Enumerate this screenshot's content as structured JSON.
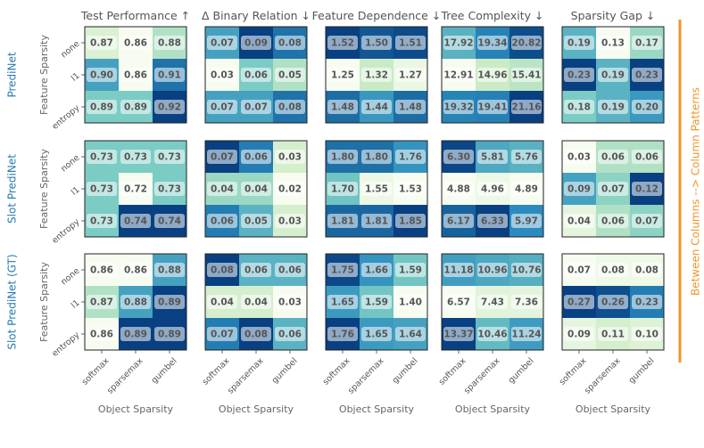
{
  "chart_data": {
    "type": "heatmap",
    "column_titles": [
      "Test Performance ↑",
      "Δ Binary Relation ↓",
      "Feature Dependence ↓",
      "Tree Complexity ↓",
      "Sparsity Gap ↓"
    ],
    "row_titles": [
      "PrediNet",
      "Slot PrediNet",
      "Slot PrediNet (GT)"
    ],
    "xlabel": "Object Sparsity",
    "ylabel": "Feature Sparsity",
    "x_categories": [
      "softmax",
      "sparsemax",
      "gumbel"
    ],
    "y_categories": [
      "none",
      "l1",
      "entropy"
    ],
    "side_label": "Between Columns --> Column Patterns",
    "colormap": [
      "#f7fcf0",
      "#ccebc5",
      "#7bccc4",
      "#2b8cbe",
      "#084081"
    ],
    "grids": [
      [
        {
          "values": [
            [
              0.87,
              0.86,
              0.88
            ],
            [
              0.9,
              0.86,
              0.91
            ],
            [
              0.89,
              0.89,
              0.92
            ]
          ],
          "labels": [
            [
              "0.87",
              "0.86",
              "0.88"
            ],
            [
              "0.90",
              "0.86",
              "0.91"
            ],
            [
              "0.89",
              "0.89",
              "0.92"
            ]
          ]
        },
        {
          "values": [
            [
              0.07,
              0.09,
              0.08
            ],
            [
              0.03,
              0.06,
              0.05
            ],
            [
              0.07,
              0.07,
              0.08
            ]
          ],
          "labels": [
            [
              "0.07",
              "0.09",
              "0.08"
            ],
            [
              "0.03",
              "0.06",
              "0.05"
            ],
            [
              "0.07",
              "0.07",
              "0.08"
            ]
          ]
        },
        {
          "values": [
            [
              1.52,
              1.5,
              1.51
            ],
            [
              1.25,
              1.32,
              1.27
            ],
            [
              1.48,
              1.44,
              1.48
            ]
          ],
          "labels": [
            [
              "1.52",
              "1.50",
              "1.51"
            ],
            [
              "1.25",
              "1.32",
              "1.27"
            ],
            [
              "1.48",
              "1.44",
              "1.48"
            ]
          ]
        },
        {
          "values": [
            [
              17.92,
              19.34,
              20.82
            ],
            [
              12.91,
              14.96,
              15.41
            ],
            [
              19.32,
              19.41,
              21.16
            ]
          ],
          "labels": [
            [
              "17.92",
              "19.34",
              "20.82"
            ],
            [
              "12.91",
              "14.96",
              "15.41"
            ],
            [
              "19.32",
              "19.41",
              "21.16"
            ]
          ]
        },
        {
          "values": [
            [
              0.19,
              0.13,
              0.17
            ],
            [
              0.23,
              0.19,
              0.23
            ],
            [
              0.18,
              0.19,
              0.2
            ]
          ],
          "labels": [
            [
              "0.19",
              "0.13",
              "0.17"
            ],
            [
              "0.23",
              "0.19",
              "0.23"
            ],
            [
              "0.18",
              "0.19",
              "0.20"
            ]
          ]
        }
      ],
      [
        {
          "values": [
            [
              0.73,
              0.73,
              0.73
            ],
            [
              0.73,
              0.72,
              0.73
            ],
            [
              0.73,
              0.74,
              0.74
            ]
          ],
          "labels": [
            [
              "0.73",
              "0.73",
              "0.73"
            ],
            [
              "0.73",
              "0.72",
              "0.73"
            ],
            [
              "0.73",
              "0.74",
              "0.74"
            ]
          ]
        },
        {
          "values": [
            [
              0.07,
              0.06,
              0.03
            ],
            [
              0.04,
              0.04,
              0.02
            ],
            [
              0.06,
              0.05,
              0.03
            ]
          ],
          "labels": [
            [
              "0.07",
              "0.06",
              "0.03"
            ],
            [
              "0.04",
              "0.04",
              "0.02"
            ],
            [
              "0.06",
              "0.05",
              "0.03"
            ]
          ]
        },
        {
          "values": [
            [
              1.8,
              1.8,
              1.76
            ],
            [
              1.7,
              1.55,
              1.53
            ],
            [
              1.81,
              1.81,
              1.85
            ]
          ],
          "labels": [
            [
              "1.80",
              "1.80",
              "1.76"
            ],
            [
              "1.70",
              "1.55",
              "1.53"
            ],
            [
              "1.81",
              "1.81",
              "1.85"
            ]
          ]
        },
        {
          "values": [
            [
              6.3,
              5.81,
              5.76
            ],
            [
              4.88,
              4.96,
              4.89
            ],
            [
              6.17,
              6.33,
              5.97
            ]
          ],
          "labels": [
            [
              "6.30",
              "5.81",
              "5.76"
            ],
            [
              "4.88",
              "4.96",
              "4.89"
            ],
            [
              "6.17",
              "6.33",
              "5.97"
            ]
          ]
        },
        {
          "values": [
            [
              0.03,
              0.06,
              0.06
            ],
            [
              0.09,
              0.07,
              0.12
            ],
            [
              0.04,
              0.06,
              0.07
            ]
          ],
          "labels": [
            [
              "0.03",
              "0.06",
              "0.06"
            ],
            [
              "0.09",
              "0.07",
              "0.12"
            ],
            [
              "0.04",
              "0.06",
              "0.07"
            ]
          ]
        }
      ],
      [
        {
          "values": [
            [
              0.86,
              0.86,
              0.88
            ],
            [
              0.87,
              0.88,
              0.89
            ],
            [
              0.86,
              0.89,
              0.89
            ]
          ],
          "labels": [
            [
              "0.86",
              "0.86",
              "0.88"
            ],
            [
              "0.87",
              "0.88",
              "0.89"
            ],
            [
              "0.86",
              "0.89",
              "0.89"
            ]
          ]
        },
        {
          "values": [
            [
              0.08,
              0.06,
              0.06
            ],
            [
              0.04,
              0.04,
              0.03
            ],
            [
              0.07,
              0.08,
              0.06
            ]
          ],
          "labels": [
            [
              "0.08",
              "0.06",
              "0.06"
            ],
            [
              "0.04",
              "0.04",
              "0.03"
            ],
            [
              "0.07",
              "0.08",
              "0.06"
            ]
          ]
        },
        {
          "values": [
            [
              1.75,
              1.66,
              1.59
            ],
            [
              1.65,
              1.59,
              1.4
            ],
            [
              1.76,
              1.65,
              1.64
            ]
          ],
          "labels": [
            [
              "1.75",
              "1.66",
              "1.59"
            ],
            [
              "1.65",
              "1.59",
              "1.40"
            ],
            [
              "1.76",
              "1.65",
              "1.64"
            ]
          ]
        },
        {
          "values": [
            [
              11.18,
              10.96,
              10.76
            ],
            [
              6.57,
              7.43,
              7.36
            ],
            [
              13.37,
              10.46,
              11.24
            ]
          ],
          "labels": [
            [
              "11.18",
              "10.96",
              "10.76"
            ],
            [
              "6.57",
              "7.43",
              "7.36"
            ],
            [
              "13.37",
              "10.46",
              "11.24"
            ]
          ]
        },
        {
          "values": [
            [
              0.07,
              0.08,
              0.08
            ],
            [
              0.27,
              0.26,
              0.23
            ],
            [
              0.09,
              0.11,
              0.1
            ]
          ],
          "labels": [
            [
              "0.07",
              "0.08",
              "0.08"
            ],
            [
              "0.27",
              "0.26",
              "0.23"
            ],
            [
              "0.09",
              "0.11",
              "0.10"
            ]
          ]
        }
      ]
    ]
  }
}
